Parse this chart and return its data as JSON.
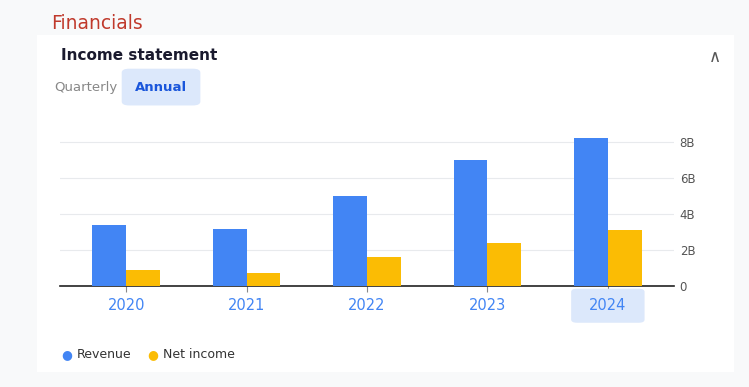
{
  "title": "Financials",
  "subtitle": "Income statement",
  "years": [
    "2020",
    "2021",
    "2022",
    "2023",
    "2024"
  ],
  "revenue": [
    3.4,
    3.2,
    5.0,
    7.0,
    8.2
  ],
  "net_income": [
    0.9,
    0.75,
    1.6,
    2.4,
    3.1
  ],
  "revenue_color": "#4285F4",
  "net_income_color": "#FBBC04",
  "ylim": [
    0,
    9
  ],
  "yticks": [
    0,
    2,
    4,
    6,
    8
  ],
  "ytick_labels": [
    "0",
    "2B",
    "4B",
    "6B",
    "8B"
  ],
  "tab_quarterly": "Quarterly",
  "tab_annual": "Annual",
  "legend_revenue": "Revenue",
  "legend_net_income": "Net income",
  "bar_width": 0.28,
  "highlight_year": "2024",
  "bg_color": "#f8f9fa",
  "panel_bg": "#ffffff",
  "title_color": "#c0392b",
  "subtitle_color": "#1a1a2e",
  "axis_label_color": "#4285F4",
  "tick_color": "#555555",
  "annual_tab_bg": "#dce8fb",
  "annual_tab_text": "#1a56db",
  "highlight_year_bg": "#dce8fb",
  "panel_border_color": "#d0d5dd",
  "grid_color": "#e8eaed",
  "bottom_axis_color": "#222222"
}
